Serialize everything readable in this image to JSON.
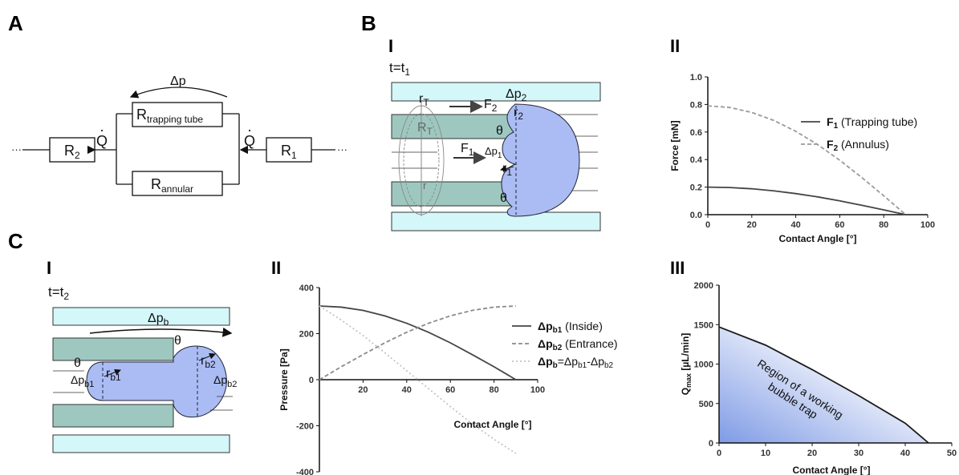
{
  "panels": {
    "A": "A",
    "B": "B",
    "C": "C",
    "BI": "I",
    "BII": "II",
    "CI": "I",
    "CII": "II",
    "CIII": "III"
  },
  "circuitA": {
    "dp": "Δp",
    "Q1": "Q",
    "Q2": "Q",
    "R1": "R",
    "R1_sub": "1",
    "R2": "R",
    "R2_sub": "2",
    "R_trap": "R",
    "R_trap_sub": "trapping tube",
    "R_ann": "R",
    "R_ann_sub": "annular",
    "dots_left": "···",
    "dots_right": "···"
  },
  "schematicB": {
    "time": "t=t",
    "time_sub": "1",
    "F1": "F",
    "F1_sub": "1",
    "F2": "F",
    "F2_sub": "2",
    "dp1": "Δp",
    "dp1_sub": "1",
    "dp2": "Δp",
    "dp2_sub": "2",
    "r1": "r",
    "r1_sub": "1",
    "r2": "r",
    "r2_sub": "2",
    "rT": "r",
    "rT_sub": "T",
    "RT": "R",
    "RT_sub": "T",
    "r": "r",
    "theta_top": "θ",
    "theta_bot": "θ"
  },
  "schematicC": {
    "time": "t=t",
    "time_sub": "2",
    "dpb": "Δp",
    "dpb_sub": "b",
    "dpb1": "Δp",
    "dpb1_sub": "b1",
    "dpb2": "Δp",
    "dpb2_sub": "b2",
    "rb1": "r",
    "rb1_sub": "b1",
    "rb2": "r",
    "rb2_sub": "b2",
    "theta_left": "θ",
    "theta_right": "θ"
  },
  "chart_data": [
    {
      "id": "B-II",
      "type": "line",
      "xlabel": "Contact Angle [°]",
      "ylabel": "Force [mN]",
      "xlim": [
        0,
        100
      ],
      "ylim": [
        0,
        1.0
      ],
      "xticks": [
        0,
        20,
        40,
        60,
        80,
        100
      ],
      "yticks": [
        "0.0",
        "0.2",
        "0.4",
        "0.6",
        "0.8",
        "1.0"
      ],
      "legend": "top-right",
      "series": [
        {
          "name": "F",
          "sub": "1",
          "desc": " (Trapping tube)",
          "color": "#444444",
          "dash": "solid",
          "x": [
            0,
            10,
            20,
            30,
            40,
            50,
            60,
            70,
            80,
            90
          ],
          "y": [
            0.2,
            0.197,
            0.188,
            0.173,
            0.153,
            0.129,
            0.1,
            0.068,
            0.035,
            0.0
          ]
        },
        {
          "name": "F",
          "sub": "2",
          "desc": " (Annulus)",
          "color": "#9a9a9a",
          "dash": "dashed",
          "x": [
            0,
            10,
            20,
            30,
            40,
            50,
            60,
            70,
            80,
            90
          ],
          "y": [
            0.79,
            0.778,
            0.742,
            0.684,
            0.605,
            0.508,
            0.395,
            0.27,
            0.137,
            0.0
          ]
        }
      ]
    },
    {
      "id": "C-II",
      "type": "line",
      "xlabel": "Contact Angle [°]",
      "ylabel": "Pressure [Pa]",
      "xlim": [
        0,
        100
      ],
      "ylim": [
        -400,
        400
      ],
      "xticks": [
        20,
        40,
        60,
        80,
        100
      ],
      "yticks": [
        "400",
        "200",
        "0",
        "-200",
        "-400"
      ],
      "legend": "right",
      "series": [
        {
          "name": "Δp",
          "sub": "b1",
          "desc": " (Inside)",
          "color": "#444444",
          "dash": "solid",
          "x": [
            0,
            10,
            20,
            30,
            40,
            50,
            60,
            70,
            80,
            90
          ],
          "y": [
            320,
            315,
            301,
            277,
            245,
            206,
            160,
            109,
            56,
            0
          ]
        },
        {
          "name": "Δp",
          "sub": "b2",
          "desc": " (Entrance)",
          "color": "#8a8a8a",
          "dash": "dashed",
          "x": [
            0,
            10,
            20,
            30,
            40,
            50,
            60,
            70,
            80,
            90
          ],
          "y": [
            0,
            56,
            109,
            160,
            206,
            245,
            277,
            301,
            315,
            320
          ]
        },
        {
          "name": "Δp",
          "sub": "b",
          "desc": "=Δp",
          "desc_sub": "b1",
          "desc2": "-Δp",
          "desc2_sub": "b2",
          "color": "#c4c4c4",
          "dash": "dotted",
          "x": [
            0,
            10,
            20,
            30,
            40,
            50,
            60,
            70,
            80,
            90
          ],
          "y": [
            320,
            259,
            192,
            117,
            39,
            -39,
            -117,
            -192,
            -259,
            -320
          ]
        }
      ]
    },
    {
      "id": "C-III",
      "type": "area",
      "xlabel": "Contact Angle [°]",
      "ylabel": "Q",
      "ylabel_sub": "max",
      "ylabel_unit": " [µL/min]",
      "xlim": [
        0,
        50
      ],
      "ylim": [
        0,
        2000
      ],
      "xticks": [
        0,
        10,
        20,
        30,
        40,
        50
      ],
      "yticks": [
        "0",
        "500",
        "1000",
        "1500",
        "2000"
      ],
      "annotation": "Region of a working bubble trap",
      "series": [
        {
          "name": "",
          "color": "#1a1a1a",
          "x": [
            0,
            10,
            20,
            30,
            40,
            45
          ],
          "y": [
            1470,
            1240,
            930,
            600,
            250,
            0
          ]
        }
      ]
    }
  ]
}
